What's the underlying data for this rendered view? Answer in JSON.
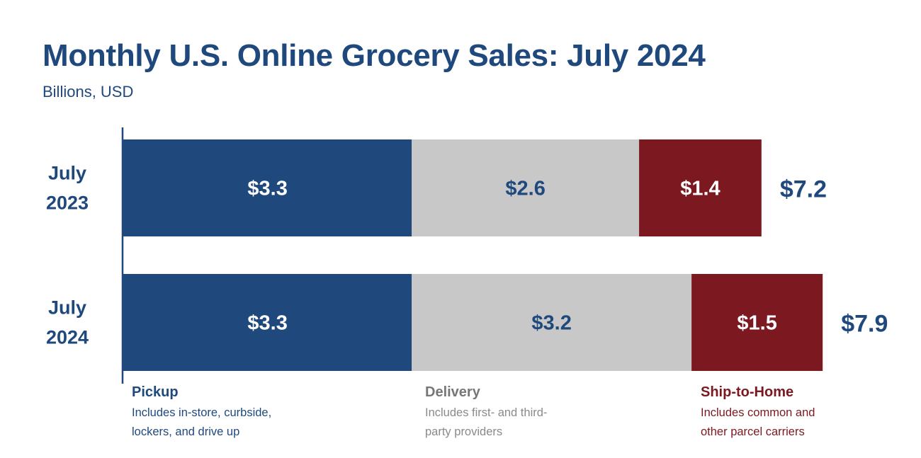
{
  "header": {
    "title": "Monthly U.S. Online Grocery Sales: July 2024",
    "subtitle": "Billions, USD"
  },
  "chart_data": {
    "type": "bar",
    "orientation": "horizontal",
    "stacked": true,
    "title": "Monthly U.S. Online Grocery Sales: July 2024",
    "subtitle": "Billions, USD",
    "categories": [
      [
        "July",
        "2023"
      ],
      [
        "July",
        "2024"
      ]
    ],
    "series": [
      {
        "name": "Pickup",
        "values": [
          3.3,
          3.3
        ],
        "labels": [
          "$3.3",
          "$3.3"
        ],
        "color": "#1f497d",
        "label_color": "#ffffff"
      },
      {
        "name": "Delivery",
        "values": [
          2.6,
          3.2
        ],
        "labels": [
          "$2.6",
          "$3.2"
        ],
        "color": "#c8c8c8",
        "label_color": "#1f497d"
      },
      {
        "name": "Ship-to-Home",
        "values": [
          1.4,
          1.5
        ],
        "labels": [
          "$1.4",
          "$1.5"
        ],
        "color": "#7b1820",
        "label_color": "#ffffff"
      }
    ],
    "totals": [
      7.2,
      7.9
    ],
    "total_labels": [
      "$7.2",
      "$7.9"
    ],
    "axis_color": "#1f497d",
    "grid": false,
    "legend_position": "bottom"
  },
  "legend": [
    {
      "name": "Pickup",
      "description": [
        "Includes in-store, curbside,",
        "lockers, and drive up"
      ],
      "color": "#1f497d",
      "desc_color": "#1f497d"
    },
    {
      "name": "Delivery",
      "description": [
        "Includes first- and third-",
        "party providers"
      ],
      "color": "#777777",
      "desc_color": "#8a8a8a"
    },
    {
      "name": "Ship-to-Home",
      "description": [
        "Includes common and",
        "other parcel carriers"
      ],
      "color": "#7b1820",
      "desc_color": "#7b1820"
    }
  ]
}
